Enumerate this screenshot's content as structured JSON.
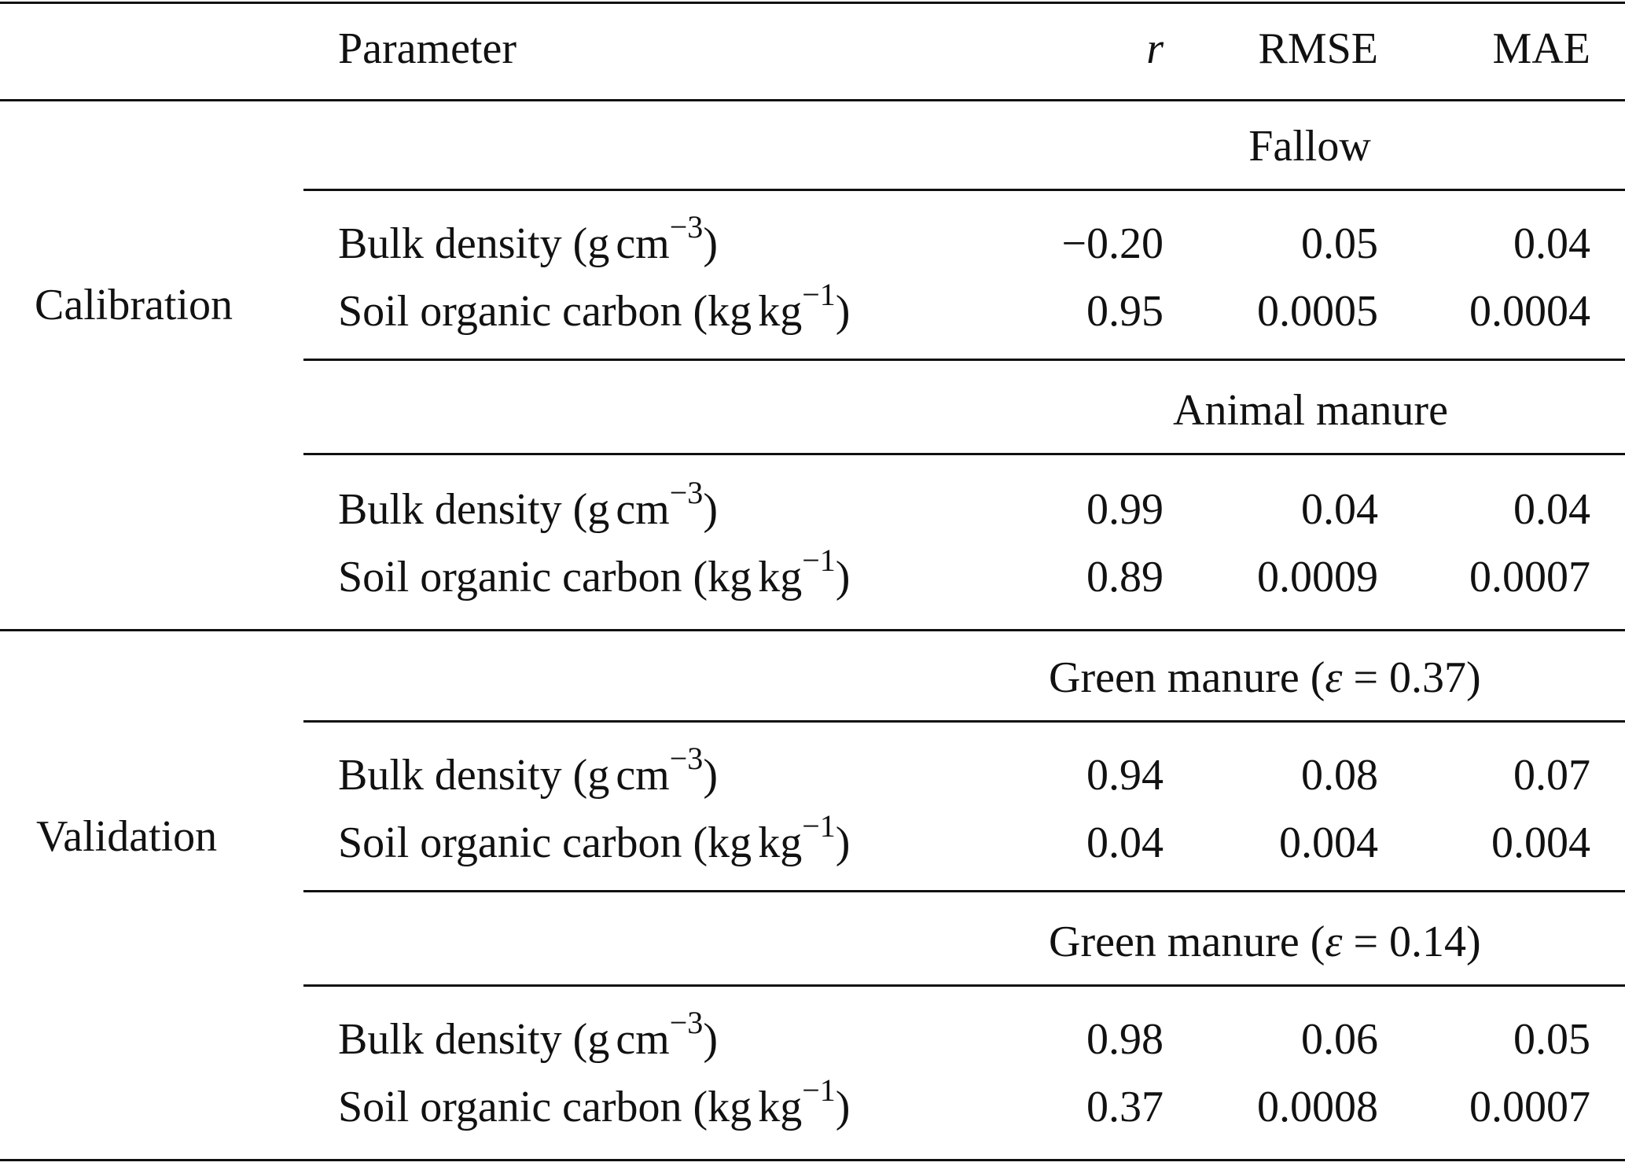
{
  "header": {
    "parameter": "Parameter",
    "r": "r",
    "rmse": "RMSE",
    "mae": "MAE"
  },
  "groups": [
    {
      "phase": "Calibration",
      "blocks": [
        {
          "title": "Fallow",
          "rows": [
            {
              "param_base": "Bulk density (g",
              "param_unit": "cm",
              "param_exp": "−3",
              "param_close": ")",
              "r": "−0.20",
              "rmse": "0.05",
              "mae": "0.04"
            },
            {
              "param_base": "Soil organic carbon (kg",
              "param_unit": "kg",
              "param_exp": "−1",
              "param_close": ")",
              "r": "0.95",
              "rmse": "0.0005",
              "mae": "0.0004"
            }
          ]
        },
        {
          "title": "Animal manure",
          "rows": [
            {
              "param_base": "Bulk density (g",
              "param_unit": "cm",
              "param_exp": "−3",
              "param_close": ")",
              "r": "0.99",
              "rmse": "0.04",
              "mae": "0.04"
            },
            {
              "param_base": "Soil organic carbon (kg",
              "param_unit": "kg",
              "param_exp": "−1",
              "param_close": ")",
              "r": "0.89",
              "rmse": "0.0009",
              "mae": "0.0007"
            }
          ]
        }
      ]
    },
    {
      "phase": "Validation",
      "blocks": [
        {
          "title_prefix": "Green manure (",
          "title_symbol": "ε",
          "title_suffix": " = 0.37)",
          "rows": [
            {
              "param_base": "Bulk density (g",
              "param_unit": "cm",
              "param_exp": "−3",
              "param_close": ")",
              "r": "0.94",
              "rmse": "0.08",
              "mae": "0.07"
            },
            {
              "param_base": "Soil organic carbon (kg",
              "param_unit": "kg",
              "param_exp": "−1",
              "param_close": ")",
              "r": "0.04",
              "rmse": "0.004",
              "mae": "0.004"
            }
          ]
        },
        {
          "title_prefix": "Green manure (",
          "title_symbol": "ε",
          "title_suffix": " = 0.14)",
          "rows": [
            {
              "param_base": "Bulk density (g",
              "param_unit": "cm",
              "param_exp": "−3",
              "param_close": ")",
              "r": "0.98",
              "rmse": "0.06",
              "mae": "0.05"
            },
            {
              "param_base": "Soil organic carbon (kg",
              "param_unit": "kg",
              "param_exp": "−1",
              "param_close": ")",
              "r": "0.37",
              "rmse": "0.0008",
              "mae": "0.0007"
            }
          ]
        }
      ]
    }
  ]
}
